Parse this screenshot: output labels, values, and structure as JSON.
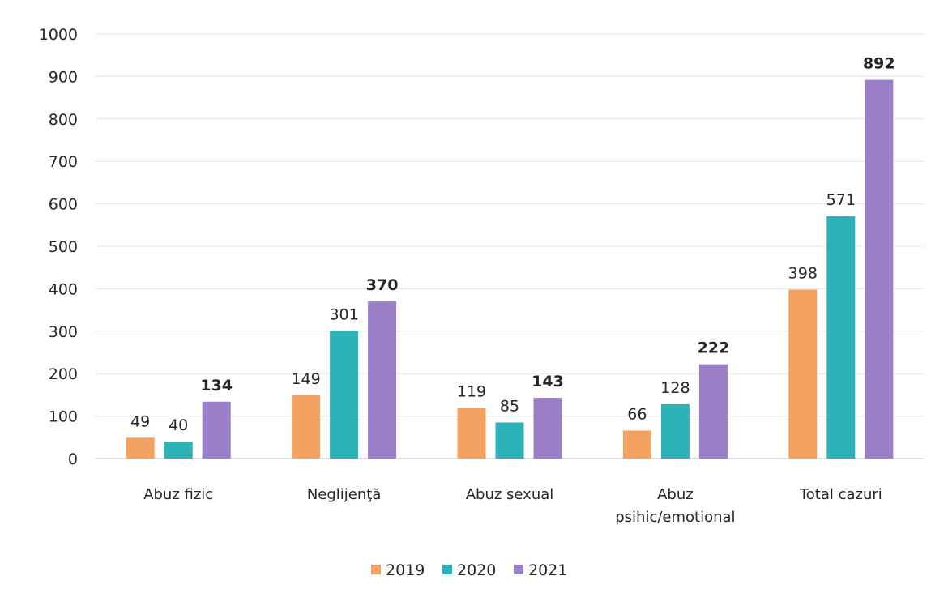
{
  "chart_data": {
    "type": "bar",
    "categories": [
      [
        "Abuz fizic"
      ],
      [
        "Neglijenţă"
      ],
      [
        "Abuz sexual"
      ],
      [
        "Abuz",
        "psihic/emotional"
      ],
      [
        "Total cazuri"
      ]
    ],
    "series": [
      {
        "name": "2019",
        "color": "#F4A261",
        "values": [
          49,
          149,
          119,
          66,
          398
        ],
        "value_labels": [
          "49",
          "149",
          "119",
          "66",
          "398"
        ],
        "bold_labels": false
      },
      {
        "name": "2020",
        "color": "#2BB3B8",
        "values": [
          40,
          301,
          85,
          128,
          571
        ],
        "value_labels": [
          "40",
          "301",
          "85",
          "128",
          "571"
        ],
        "bold_labels": false
      },
      {
        "name": "2021",
        "color": "#9B7FC6",
        "values": [
          134,
          370,
          143,
          222,
          892
        ],
        "value_labels": [
          "134",
          "370",
          "143",
          "222",
          "892"
        ],
        "bold_labels": true
      }
    ],
    "ylim": [
      0,
      1000
    ],
    "yticks": [
      "0",
      "100",
      "200",
      "300",
      "400",
      "500",
      "600",
      "700",
      "800",
      "900",
      "1000"
    ],
    "grid": true,
    "legend_position": "bottom",
    "title": "",
    "xlabel": "",
    "ylabel": ""
  }
}
